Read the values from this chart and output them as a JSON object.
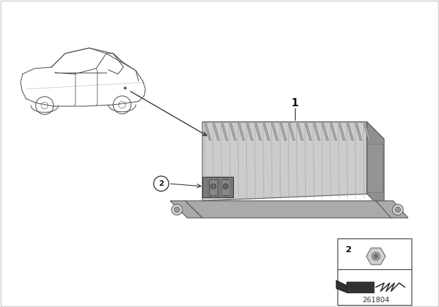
{
  "bg_color": "#ffffff",
  "diagram_number": "261804",
  "car_color": "#555555",
  "car_lw": 0.8,
  "fig_width": 6.4,
  "fig_height": 4.48,
  "dpi": 100,
  "combox_top_face_color": "#b8b8b8",
  "combox_front_face_color": "#cccccc",
  "combox_right_face_color": "#909090",
  "combox_bracket_color": "#aaaaaa",
  "combox_dark_color": "#777777",
  "fin_color": "#a8a8a8",
  "fin_edge_color": "#666666",
  "label_color": "#111111",
  "box_edge_color": "#333333"
}
